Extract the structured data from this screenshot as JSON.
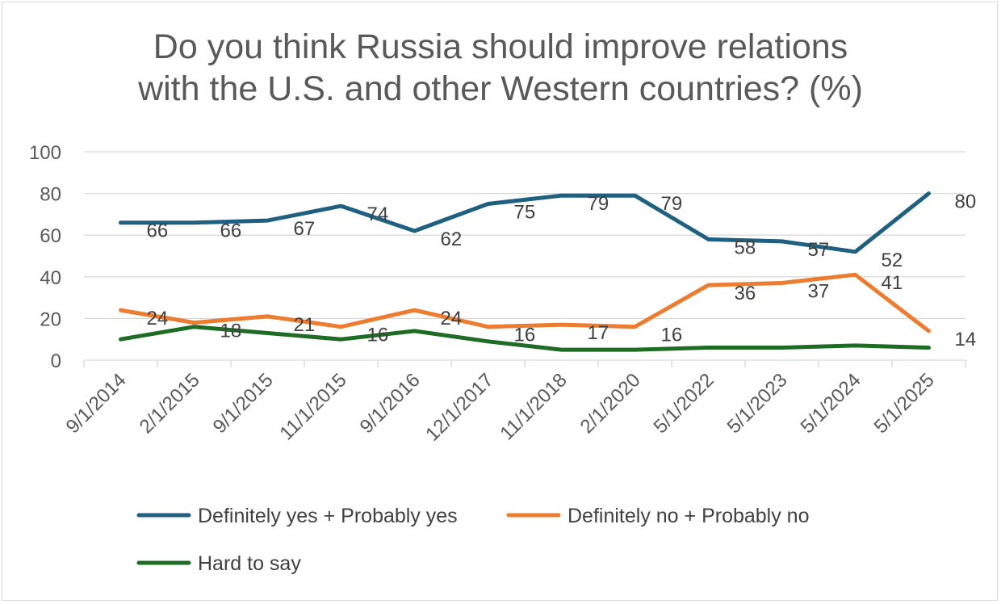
{
  "chart_data": {
    "type": "line",
    "title_lines": [
      "Do you think Russia should improve relations",
      "with the U.S. and other Western countries? (%)"
    ],
    "categories": [
      "9/1/2014",
      "2/1/2015",
      "9/1/2015",
      "11/1/2015",
      "9/1/2016",
      "12/1/2017",
      "11/1/2018",
      "2/1/2020",
      "5/1/2022",
      "5/1/2023",
      "5/1/2024",
      "5/1/2025"
    ],
    "y_ticks": [
      "0",
      "20",
      "40",
      "60",
      "80",
      "100"
    ],
    "ylim": [
      0,
      100
    ],
    "grid": true,
    "legend_position": "bottom",
    "series": [
      {
        "name": "Definitely yes + Probably yes",
        "color": "#1f5f7f",
        "values": [
          66,
          66,
          67,
          74,
          62,
          75,
          79,
          79,
          58,
          57,
          52,
          80
        ],
        "labels": [
          "66",
          "66",
          "67",
          "74",
          "62",
          "75",
          "79",
          "79",
          "58",
          "57",
          "52",
          "80"
        ]
      },
      {
        "name": "Definitely no + Probably no",
        "color": "#ec7c30",
        "values": [
          24,
          18,
          21,
          16,
          24,
          16,
          17,
          16,
          36,
          37,
          41,
          14
        ],
        "labels": [
          "24",
          "18",
          "21",
          "16",
          "24",
          "16",
          "17",
          "16",
          "36",
          "37",
          "41",
          "14"
        ]
      },
      {
        "name": "Hard to say",
        "color": "#1e6b24",
        "values": [
          10,
          16,
          13,
          10,
          14,
          9,
          5,
          5,
          6,
          6,
          7,
          6
        ]
      }
    ]
  }
}
